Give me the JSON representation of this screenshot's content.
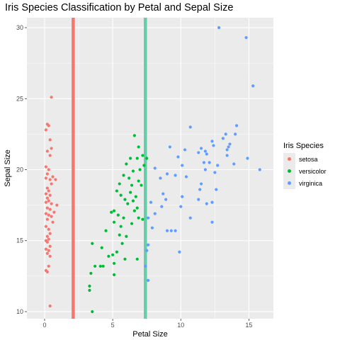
{
  "chart_data": {
    "type": "scatter",
    "title": "Iris Species Classification by Petal and Sepal Size",
    "xlabel": "Petal Size",
    "ylabel": "Sepal Size",
    "xlim": [
      -1.3,
      16.8
    ],
    "ylim": [
      9.5,
      30.7
    ],
    "x_ticks": [
      0,
      5,
      10,
      15
    ],
    "y_ticks": [
      10,
      15,
      20,
      25,
      30
    ],
    "grid": true,
    "legend_position": "right",
    "legend_title": "Iris Species",
    "vertical_lines": [
      {
        "x": 2.1,
        "color": "#F8766D"
      },
      {
        "x": 7.4,
        "color": "#66CDAA"
      }
    ],
    "series": [
      {
        "name": "setosa",
        "color": "#F8766D",
        "points": [
          [
            0.5,
            25.1
          ],
          [
            0.2,
            23.2
          ],
          [
            0.3,
            23.1
          ],
          [
            0.1,
            22.8
          ],
          [
            0.4,
            22.1
          ],
          [
            0.5,
            21.5
          ],
          [
            0.2,
            21.3
          ],
          [
            0.4,
            21.0
          ],
          [
            0.1,
            20.2
          ],
          [
            0.3,
            20.0
          ],
          [
            0.2,
            19.7
          ],
          [
            0.6,
            19.5
          ],
          [
            0.1,
            19.4
          ],
          [
            0.4,
            19.3
          ],
          [
            0.8,
            19.3
          ],
          [
            0.5,
            19.0
          ],
          [
            0.2,
            18.7
          ],
          [
            0.3,
            18.5
          ],
          [
            0.1,
            18.3
          ],
          [
            0.4,
            18.2
          ],
          [
            0.2,
            18.0
          ],
          [
            0.3,
            17.8
          ],
          [
            0.1,
            17.7
          ],
          [
            0.5,
            17.6
          ],
          [
            0.9,
            17.5
          ],
          [
            0.2,
            17.3
          ],
          [
            0.4,
            17.2
          ],
          [
            0.7,
            17.0
          ],
          [
            0.1,
            16.9
          ],
          [
            0.3,
            16.8
          ],
          [
            0.5,
            16.7
          ],
          [
            0.2,
            16.5
          ],
          [
            0.6,
            16.3
          ],
          [
            0.1,
            16.0
          ],
          [
            0.3,
            15.8
          ],
          [
            0.4,
            15.5
          ],
          [
            0.2,
            15.3
          ],
          [
            0.3,
            15.1
          ],
          [
            0.1,
            15.0
          ],
          [
            0.2,
            14.9
          ],
          [
            0.4,
            14.6
          ],
          [
            0.1,
            14.4
          ],
          [
            0.3,
            14.3
          ],
          [
            0.2,
            14.1
          ],
          [
            0.4,
            13.9
          ],
          [
            0.3,
            13.2
          ],
          [
            0.1,
            12.9
          ],
          [
            0.2,
            12.8
          ],
          [
            0.4,
            10.4
          ]
        ]
      },
      {
        "name": "versicolor",
        "color": "#00BA38",
        "points": [
          [
            6.6,
            22.4
          ],
          [
            6.9,
            21.6
          ],
          [
            7.2,
            21.0
          ],
          [
            6.3,
            20.8
          ],
          [
            6.8,
            20.8
          ],
          [
            7.5,
            20.8
          ],
          [
            6.0,
            20.4
          ],
          [
            7.3,
            20.3
          ],
          [
            7.0,
            20.0
          ],
          [
            6.5,
            19.9
          ],
          [
            5.8,
            19.6
          ],
          [
            6.2,
            19.4
          ],
          [
            6.9,
            19.2
          ],
          [
            5.5,
            19.0
          ],
          [
            6.4,
            18.9
          ],
          [
            7.1,
            18.9
          ],
          [
            5.3,
            18.5
          ],
          [
            6.3,
            18.4
          ],
          [
            5.6,
            18.2
          ],
          [
            6.7,
            18.1
          ],
          [
            5.9,
            17.9
          ],
          [
            6.5,
            17.8
          ],
          [
            6.1,
            17.6
          ],
          [
            6.8,
            17.3
          ],
          [
            6.6,
            17.1
          ],
          [
            5.1,
            17.1
          ],
          [
            4.9,
            17.0
          ],
          [
            5.4,
            16.8
          ],
          [
            5.8,
            16.6
          ],
          [
            6.9,
            16.6
          ],
          [
            7.2,
            16.5
          ],
          [
            5.1,
            16.3
          ],
          [
            6.4,
            16.2
          ],
          [
            5.6,
            16.0
          ],
          [
            4.5,
            15.7
          ],
          [
            5.5,
            15.4
          ],
          [
            6.0,
            15.3
          ],
          [
            5.7,
            14.8
          ],
          [
            4.2,
            14.5
          ],
          [
            3.5,
            14.8
          ],
          [
            5.3,
            14.2
          ],
          [
            5.0,
            14.0
          ],
          [
            4.7,
            13.9
          ],
          [
            5.9,
            13.7
          ],
          [
            5.1,
            13.4
          ],
          [
            3.7,
            13.2
          ],
          [
            4.1,
            13.2
          ],
          [
            4.3,
            13.2
          ],
          [
            6.8,
            13.7
          ],
          [
            3.4,
            12.7
          ],
          [
            5.1,
            12.6
          ],
          [
            3.3,
            11.8
          ],
          [
            3.3,
            11.5
          ],
          [
            3.5,
            10.0
          ]
        ]
      },
      {
        "name": "virginica",
        "color": "#619CFF",
        "points": [
          [
            12.8,
            30.0
          ],
          [
            14.8,
            29.3
          ],
          [
            15.3,
            25.9
          ],
          [
            10.7,
            23.0
          ],
          [
            13.3,
            22.5
          ],
          [
            14.0,
            22.5
          ],
          [
            13.1,
            22.2
          ],
          [
            12.3,
            22.0
          ],
          [
            14.1,
            23.1
          ],
          [
            13.6,
            21.8
          ],
          [
            13.4,
            21.4
          ],
          [
            13.5,
            21.6
          ],
          [
            11.5,
            21.5
          ],
          [
            12.4,
            21.7
          ],
          [
            9.2,
            21.6
          ],
          [
            10.3,
            21.4
          ],
          [
            11.3,
            21.2
          ],
          [
            11.8,
            21.3
          ],
          [
            11.9,
            21.1
          ],
          [
            13.4,
            21.0
          ],
          [
            14.9,
            20.8
          ],
          [
            11.7,
            20.5
          ],
          [
            12.1,
            20.5
          ],
          [
            13.9,
            20.4
          ],
          [
            9.8,
            20.9
          ],
          [
            12.7,
            20.3
          ],
          [
            10.1,
            20.3
          ],
          [
            8.1,
            20.1
          ],
          [
            11.8,
            20.0
          ],
          [
            12.5,
            19.8
          ],
          [
            15.8,
            20.0
          ],
          [
            9.6,
            19.6
          ],
          [
            10.4,
            19.5
          ],
          [
            8.5,
            19.4
          ],
          [
            9.0,
            19.7
          ],
          [
            11.5,
            19.0
          ],
          [
            12.6,
            18.6
          ],
          [
            11.4,
            18.6
          ],
          [
            8.7,
            18.3
          ],
          [
            10.1,
            18.1
          ],
          [
            8.9,
            17.9
          ],
          [
            7.8,
            17.7
          ],
          [
            11.9,
            17.6
          ],
          [
            12.3,
            17.7
          ],
          [
            8.6,
            17.4
          ],
          [
            10.0,
            17.4
          ],
          [
            8.1,
            16.9
          ],
          [
            7.6,
            16.6
          ],
          [
            10.7,
            16.6
          ],
          [
            11.3,
            17.9
          ],
          [
            12.3,
            16.3
          ],
          [
            7.9,
            15.9
          ],
          [
            9.0,
            15.7
          ],
          [
            9.3,
            15.7
          ],
          [
            9.6,
            15.7
          ],
          [
            7.6,
            14.7
          ],
          [
            7.5,
            14.3
          ],
          [
            9.9,
            14.2
          ],
          [
            7.4,
            13.2
          ],
          [
            7.6,
            12.2
          ]
        ]
      }
    ]
  }
}
